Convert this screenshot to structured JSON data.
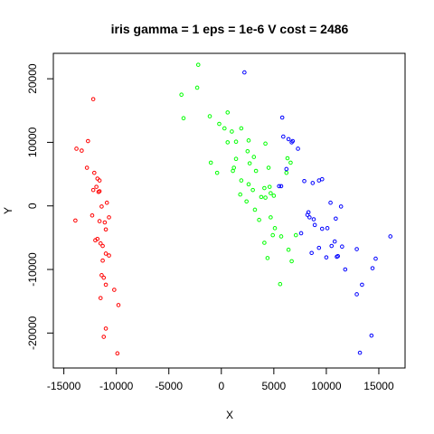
{
  "chart_data": {
    "type": "scatter",
    "title": "iris gamma = 1 eps = 1e-6 V cost = 2486",
    "xlabel": "X",
    "ylabel": "Y",
    "xlim": [
      -16000,
      17500
    ],
    "ylim": [
      -25500,
      24000
    ],
    "xticks": [
      -15000,
      -10000,
      -5000,
      0,
      5000,
      10000,
      15000
    ],
    "xtick_labels": [
      "-15000",
      "-10000",
      "-5000",
      "0",
      "5000",
      "10000",
      "15000"
    ],
    "yticks": [
      -20000,
      -10000,
      0,
      10000,
      20000
    ],
    "ytick_labels": [
      "-20000",
      "-10000",
      "0",
      "10000",
      "20000"
    ],
    "grid": false,
    "legend": "none",
    "marker": "open-circle",
    "series": [
      {
        "color": "#ff0000",
        "points": [
          [
            -12200,
            16800
          ],
          [
            -13800,
            9000
          ],
          [
            -13300,
            8700
          ],
          [
            -12700,
            10200
          ],
          [
            -12800,
            6000
          ],
          [
            -12100,
            5200
          ],
          [
            -11800,
            4300
          ],
          [
            -11600,
            4000
          ],
          [
            -11900,
            3000
          ],
          [
            -12200,
            2500
          ],
          [
            -11600,
            2300
          ],
          [
            -10900,
            500
          ],
          [
            -11400,
            -100
          ],
          [
            -12300,
            -1500
          ],
          [
            -11600,
            -2400
          ],
          [
            -11100,
            -2600
          ],
          [
            -10700,
            -1800
          ],
          [
            -11000,
            -3700
          ],
          [
            -11800,
            -5200
          ],
          [
            -11500,
            -5900
          ],
          [
            -12000,
            -5400
          ],
          [
            -11000,
            -7500
          ],
          [
            -10700,
            -7800
          ],
          [
            -11300,
            -8600
          ],
          [
            -11400,
            -10900
          ],
          [
            -11200,
            -11300
          ],
          [
            -11000,
            -12400
          ],
          [
            -10200,
            -13200
          ],
          [
            -11500,
            -14500
          ],
          [
            -9800,
            -15600
          ],
          [
            -11000,
            -19300
          ],
          [
            -11200,
            -20600
          ],
          [
            -9900,
            -23200
          ],
          [
            -13900,
            -2300
          ],
          [
            -11700,
            2200
          ],
          [
            -11300,
            -6300
          ]
        ]
      },
      {
        "color": "#00ff00",
        "points": [
          [
            -2200,
            22200
          ],
          [
            -2300,
            18600
          ],
          [
            -3800,
            17500
          ],
          [
            -3600,
            13800
          ],
          [
            -1100,
            14100
          ],
          [
            600,
            14700
          ],
          [
            -200,
            12900
          ],
          [
            300,
            12200
          ],
          [
            1000,
            11700
          ],
          [
            1900,
            12200
          ],
          [
            2600,
            10300
          ],
          [
            1400,
            10100
          ],
          [
            600,
            10000
          ],
          [
            4200,
            9800
          ],
          [
            2500,
            8600
          ],
          [
            3100,
            7700
          ],
          [
            1400,
            7400
          ],
          [
            -1000,
            6800
          ],
          [
            1200,
            6000
          ],
          [
            2700,
            6700
          ],
          [
            1100,
            5500
          ],
          [
            -400,
            5200
          ],
          [
            3300,
            5500
          ],
          [
            4500,
            6000
          ],
          [
            6300,
            7500
          ],
          [
            6600,
            6800
          ],
          [
            6200,
            5200
          ],
          [
            1900,
            4000
          ],
          [
            2600,
            3400
          ],
          [
            4600,
            3000
          ],
          [
            4100,
            2800
          ],
          [
            4700,
            2000
          ],
          [
            3000,
            2500
          ],
          [
            1800,
            1800
          ],
          [
            5000,
            1600
          ],
          [
            3800,
            1400
          ],
          [
            4200,
            1300
          ],
          [
            2400,
            700
          ],
          [
            3200,
            -600
          ],
          [
            4700,
            -1800
          ],
          [
            3600,
            -2200
          ],
          [
            5100,
            -3500
          ],
          [
            7100,
            -4600
          ],
          [
            4100,
            -5800
          ],
          [
            4900,
            -4600
          ],
          [
            5700,
            -4800
          ],
          [
            6400,
            -6900
          ],
          [
            4400,
            -8200
          ],
          [
            6700,
            -8700
          ],
          [
            5600,
            -12300
          ]
        ]
      },
      {
        "color": "#0000ff",
        "points": [
          [
            2200,
            21000
          ],
          [
            5800,
            13900
          ],
          [
            5900,
            10900
          ],
          [
            6400,
            10500
          ],
          [
            6800,
            10200
          ],
          [
            6700,
            10000
          ],
          [
            7300,
            9000
          ],
          [
            6200,
            5800
          ],
          [
            5500,
            3100
          ],
          [
            5700,
            3100
          ],
          [
            7900,
            3900
          ],
          [
            8700,
            3600
          ],
          [
            9300,
            4000
          ],
          [
            9600,
            4200
          ],
          [
            8200,
            -1400
          ],
          [
            8400,
            -1800
          ],
          [
            8800,
            -2100
          ],
          [
            8900,
            -3000
          ],
          [
            8300,
            -1000
          ],
          [
            9600,
            -3600
          ],
          [
            10400,
            500
          ],
          [
            11400,
            -100
          ],
          [
            10900,
            -2000
          ],
          [
            10100,
            -3500
          ],
          [
            10800,
            -5600
          ],
          [
            10500,
            -6300
          ],
          [
            11500,
            -6400
          ],
          [
            9300,
            -6600
          ],
          [
            8600,
            -7400
          ],
          [
            12900,
            -6800
          ],
          [
            11000,
            -8000
          ],
          [
            11100,
            -7900
          ],
          [
            11800,
            -10000
          ],
          [
            13400,
            -12400
          ],
          [
            12900,
            -13900
          ],
          [
            14700,
            -8300
          ],
          [
            14400,
            -9800
          ],
          [
            16100,
            -4800
          ],
          [
            14300,
            -20400
          ],
          [
            13200,
            -23100
          ],
          [
            10000,
            -8100
          ],
          [
            7600,
            -4300
          ]
        ]
      }
    ]
  }
}
